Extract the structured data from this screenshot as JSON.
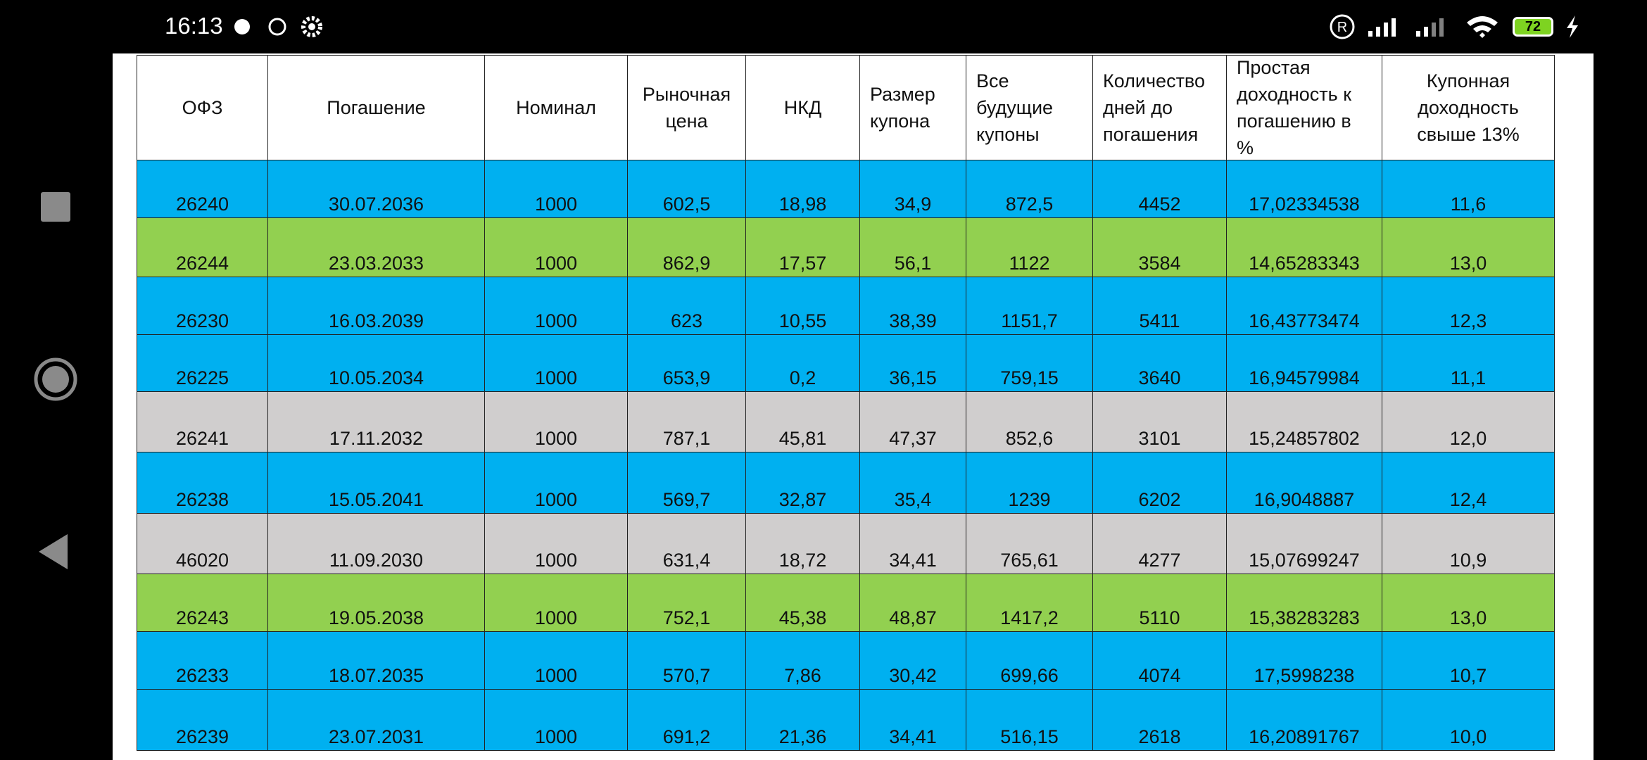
{
  "status_bar": {
    "time": "16:13",
    "battery": "72"
  },
  "table": {
    "header": [
      "ОФЗ",
      "Погашение",
      "Номинал",
      "Рыночная цена",
      "НКД",
      "Размер купона",
      "Все будущие купоны",
      "Количество дней до погашения",
      "Простая доходность к погашению в %",
      "Купонная доходность свыше 13%"
    ],
    "header_align": [
      "center",
      "center",
      "center",
      "center",
      "center",
      "left",
      "left",
      "left",
      "left",
      "center"
    ],
    "rows": [
      {
        "color": "#00b0f0",
        "cells": [
          "26240",
          "30.07.2036",
          "1000",
          "602,5",
          "18,98",
          "34,9",
          "872,5",
          "4452",
          "17,02334538",
          "11,6"
        ]
      },
      {
        "color": "#92d050",
        "cells": [
          "26244",
          "23.03.2033",
          "1000",
          "862,9",
          "17,57",
          "56,1",
          "1122",
          "3584",
          "14,65283343",
          "13,0"
        ]
      },
      {
        "color": "#00b0f0",
        "cells": [
          "26230",
          "16.03.2039",
          "1000",
          "623",
          "10,55",
          "38,39",
          "1151,7",
          "5411",
          "16,43773474",
          "12,3"
        ]
      },
      {
        "color": "#00b0f0",
        "cells": [
          "26225",
          "10.05.2034",
          "1000",
          "653,9",
          "0,2",
          "36,15",
          "759,15",
          "3640",
          "16,94579984",
          "11,1"
        ]
      },
      {
        "color": "#d0cece",
        "cells": [
          "26241",
          "17.11.2032",
          "1000",
          "787,1",
          "45,81",
          "47,37",
          "852,6",
          "3101",
          "15,24857802",
          "12,0"
        ]
      },
      {
        "color": "#00b0f0",
        "cells": [
          "26238",
          "15.05.2041",
          "1000",
          "569,7",
          "32,87",
          "35,4",
          "1239",
          "6202",
          "16,9048887",
          "12,4"
        ]
      },
      {
        "color": "#d0cece",
        "cells": [
          "46020",
          "11.09.2030",
          "1000",
          "631,4",
          "18,72",
          "34,41",
          "765,61",
          "4277",
          "15,07699247",
          "10,9"
        ]
      },
      {
        "color": "#92d050",
        "cells": [
          "26243",
          "19.05.2038",
          "1000",
          "752,1",
          "45,38",
          "48,87",
          "1417,2",
          "5110",
          "15,38283283",
          "13,0"
        ]
      },
      {
        "color": "#00b0f0",
        "cells": [
          "26233",
          "18.07.2035",
          "1000",
          "570,7",
          "7,86",
          "30,42",
          "699,66",
          "4074",
          "17,5998238",
          "10,7"
        ]
      },
      {
        "color": "#00b0f0",
        "cells": [
          "26239",
          "23.07.2031",
          "1000",
          "691,2",
          "21,36",
          "34,41",
          "516,15",
          "2618",
          "16,20891767",
          "10,0"
        ]
      }
    ]
  }
}
